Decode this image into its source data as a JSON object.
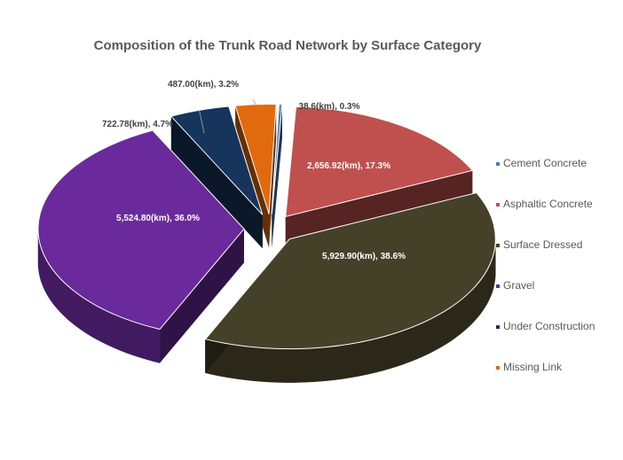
{
  "chart_data": {
    "type": "pie",
    "title": "Composition of the Trunk Road Network by Surface Category",
    "slices": [
      {
        "name": "Cement Concrete",
        "value": 38.6,
        "percent": 0.3,
        "label": "38.6(km), 0.3%",
        "color": "#4a78c0"
      },
      {
        "name": "Asphaltic Concrete",
        "value": 2656.92,
        "percent": 17.3,
        "label": "2,656.92(km), 17.3%",
        "color": "#c0504d"
      },
      {
        "name": "Surface Dressed",
        "value": 5929.9,
        "percent": 38.6,
        "label": "5,929.90(km), 38.6%",
        "color": "#454129"
      },
      {
        "name": "Gravel",
        "value": 5524.8,
        "percent": 36.0,
        "label": "5,524.80(km), 36.0%",
        "color": "#6b2a9c"
      },
      {
        "name": "Under Construction",
        "value": 722.78,
        "percent": 4.7,
        "label": "722.78(km), 4.7%",
        "color": "#17355c"
      },
      {
        "name": "Missing Link",
        "value": 487.0,
        "percent": 3.2,
        "label": "487.00(km), 3.2%",
        "color": "#e26a0e"
      }
    ],
    "legend_position": "right",
    "exploded": true,
    "style": "3d"
  }
}
